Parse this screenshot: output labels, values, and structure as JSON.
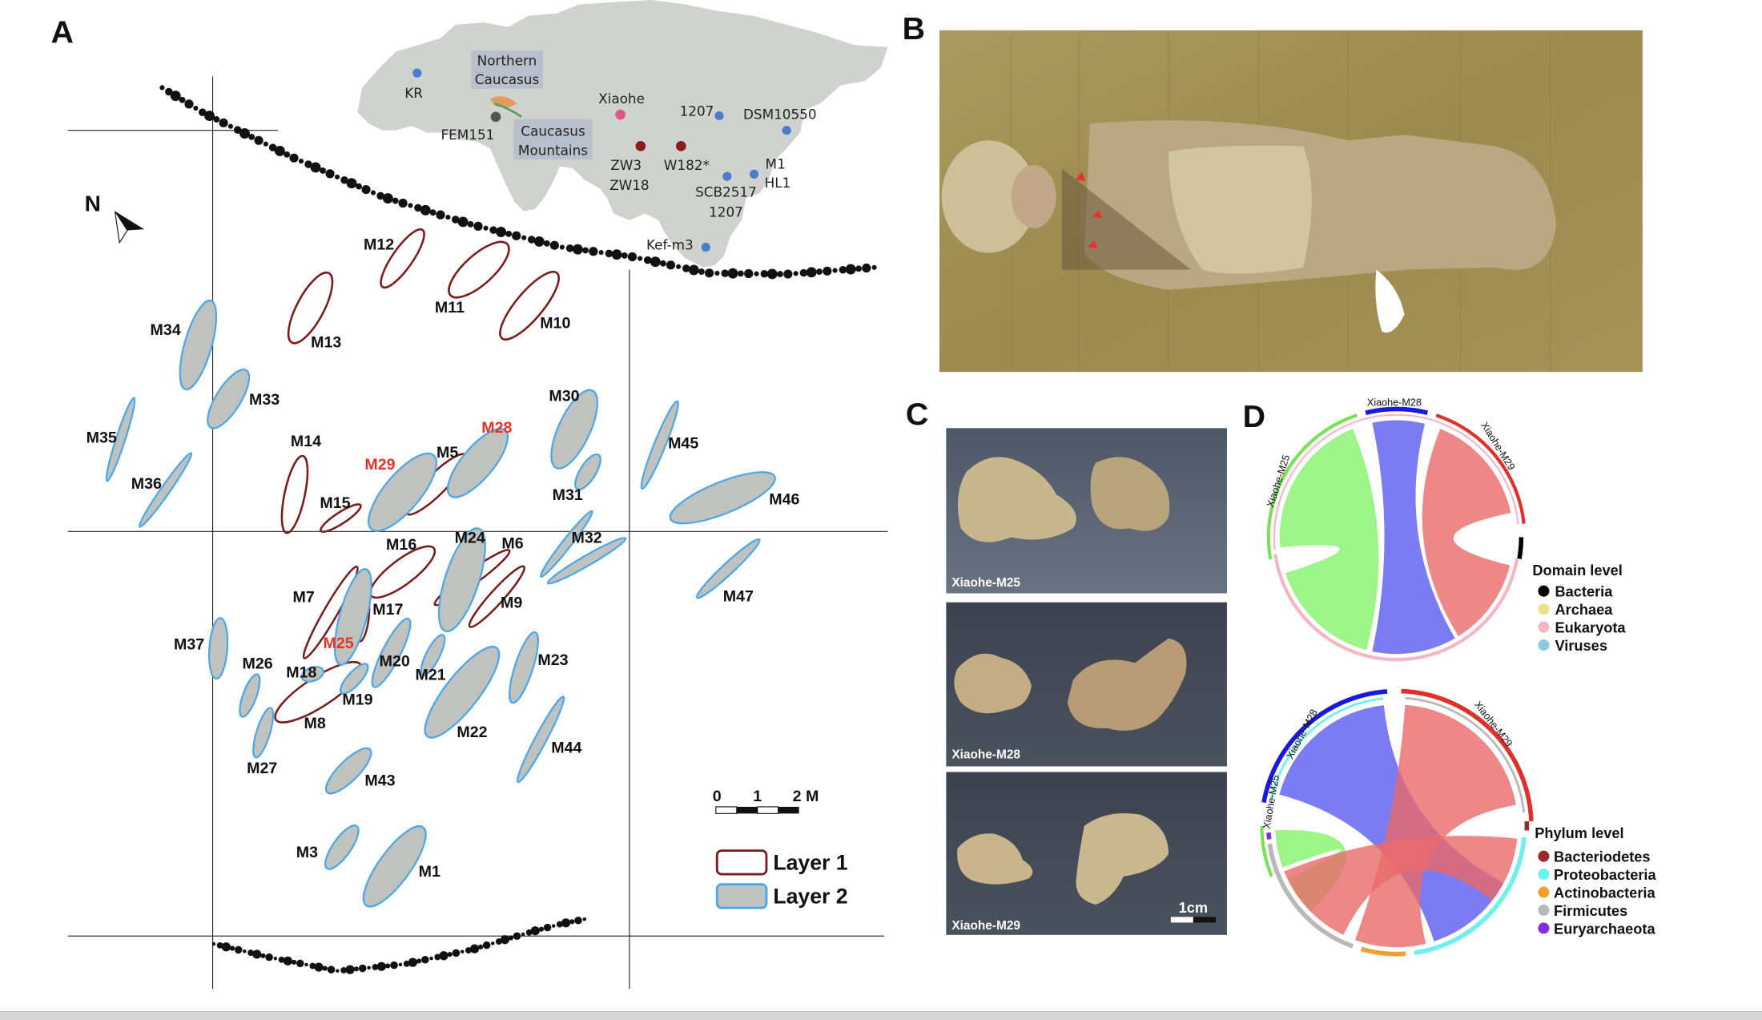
{
  "panel_a": {
    "letter": "A",
    "north": "N",
    "map": {
      "kr": "KR",
      "northern_caucasus_1": "Northern",
      "northern_caucasus_2": "Caucasus",
      "fem151": "FEM151",
      "caucasus_mountains_1": "Caucasus",
      "caucasus_mountains_2": "Mountains",
      "xiaohe": "Xiaohe",
      "s1207a": "1207",
      "dsm10550": "DSM10550",
      "zw3": "ZW3",
      "zw18": "ZW18",
      "w182": "W182*",
      "m1": "M1",
      "hl1": "HL1",
      "scb2517": "SCB2517",
      "s1207b": "1207",
      "kefm3": "Kef-m3",
      "colors": {
        "land": "#d0d2cf",
        "blue_site": "#4a7fc8",
        "xiaohe_site": "#e0568a",
        "red_site": "#8b1a1a",
        "gray_site": "#555555"
      }
    },
    "graves": [
      {
        "label": "M12",
        "layer": 1
      },
      {
        "label": "M11",
        "layer": 1
      },
      {
        "label": "M10",
        "layer": 1
      },
      {
        "label": "M13",
        "layer": 1
      },
      {
        "label": "M14",
        "layer": 1
      },
      {
        "label": "M15",
        "layer": 1
      },
      {
        "label": "M5",
        "layer": 1
      },
      {
        "label": "M16",
        "layer": 1
      },
      {
        "label": "M6",
        "layer": 1
      },
      {
        "label": "M9",
        "layer": 1
      },
      {
        "label": "M7",
        "layer": 1
      },
      {
        "label": "M17",
        "layer": 1
      },
      {
        "label": "M8",
        "layer": 1
      },
      {
        "label": "M34",
        "layer": 2
      },
      {
        "label": "M33",
        "layer": 2
      },
      {
        "label": "M35",
        "layer": 2
      },
      {
        "label": "M36",
        "layer": 2
      },
      {
        "label": "M30",
        "layer": 2
      },
      {
        "label": "M31",
        "layer": 2
      },
      {
        "label": "M28",
        "layer": 2,
        "highlight": true
      },
      {
        "label": "M29",
        "layer": 2,
        "highlight": true
      },
      {
        "label": "M45",
        "layer": 2
      },
      {
        "label": "M46",
        "layer": 2
      },
      {
        "label": "M32",
        "layer": 2
      },
      {
        "label": "M47",
        "layer": 2
      },
      {
        "label": "M24",
        "layer": 2
      },
      {
        "label": "M25",
        "layer": 2,
        "highlight": true
      },
      {
        "label": "M37",
        "layer": 2
      },
      {
        "label": "M26",
        "layer": 2
      },
      {
        "label": "M18",
        "layer": 2
      },
      {
        "label": "M20",
        "layer": 2
      },
      {
        "label": "M21",
        "layer": 2
      },
      {
        "label": "M19",
        "layer": 2
      },
      {
        "label": "M22",
        "layer": 2
      },
      {
        "label": "M23",
        "layer": 2
      },
      {
        "label": "M44",
        "layer": 2
      },
      {
        "label": "M27",
        "layer": 2
      },
      {
        "label": "M43",
        "layer": 2
      },
      {
        "label": "M3",
        "layer": 2
      },
      {
        "label": "M1",
        "layer": 2
      }
    ],
    "scale_ticks": [
      "0",
      "1",
      "2 M"
    ],
    "legend": [
      {
        "label": "Layer 1",
        "stroke": "#7a1a1a",
        "fill": "#ffffff"
      },
      {
        "label": "Layer 2",
        "stroke": "#4aa8e8",
        "fill": "#c0c2bf"
      }
    ]
  },
  "panel_b": {
    "letter": "B"
  },
  "panel_c": {
    "letter": "C",
    "photos": [
      "Xiaohe-M25",
      "Xiaohe-M28",
      "Xiaohe-M29"
    ],
    "scale": "1cm"
  },
  "panel_d": {
    "letter": "D",
    "domain_chart": {
      "samples": [
        "Xiaohe-M25",
        "Xiaohe-M28",
        "Xiaohe-M29"
      ],
      "sample_colors": [
        "#7be05a",
        "#1a1adf",
        "#e0302a"
      ],
      "legend_title": "Domain level",
      "legend": [
        {
          "name": "Bacteria",
          "color": "#000000"
        },
        {
          "name": "Archaea",
          "color": "#ece08c"
        },
        {
          "name": "Eukaryota",
          "color": "#f4b6c2"
        },
        {
          "name": "Viruses",
          "color": "#8ec8e8"
        }
      ]
    },
    "phylum_chart": {
      "samples": [
        "Xiaohe-M25",
        "Xiaohe-M28",
        "Xiaohe-M29"
      ],
      "legend_title": "Phylum level",
      "legend": [
        {
          "name": "Bacteriodetes",
          "color": "#9a2a2a"
        },
        {
          "name": "Proteobacteria",
          "color": "#6ff0f0"
        },
        {
          "name": "Actinobacteria",
          "color": "#f0a030"
        },
        {
          "name": "Firmicutes",
          "color": "#b8b8b8"
        },
        {
          "name": "Euryarchaeota",
          "color": "#8a2ae0"
        }
      ]
    }
  }
}
